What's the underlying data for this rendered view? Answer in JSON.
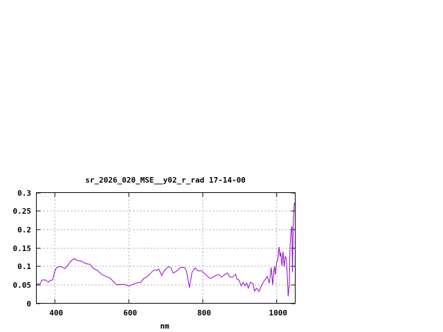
{
  "chart_data": {
    "type": "line",
    "title": "sr_2026_020_MSE__y02_r_rad 17-14-00",
    "xlabel": "nm",
    "ylabel": "",
    "xlim": [
      350,
      1050
    ],
    "ylim": [
      0,
      0.3
    ],
    "grid": true,
    "x_ticks": [
      "400",
      "600",
      "800",
      "1000"
    ],
    "x_tick_values": [
      400,
      600,
      800,
      1000
    ],
    "y_ticks": [
      "0",
      "0.05",
      "0.1",
      "0.15",
      "0.2",
      "0.25",
      "0.3"
    ],
    "y_tick_values": [
      0,
      0.05,
      0.1,
      0.15,
      0.2,
      0.25,
      0.3
    ],
    "line_color": "#9400d3",
    "series": [
      {
        "x": [
          350,
          360.6,
          365,
          375,
          382.5,
          387.5,
          394,
          399,
          404,
          414,
          420,
          427.5,
          434,
          442,
          451,
          461,
          473,
          481,
          490,
          495,
          502.5,
          514,
          526,
          539,
          548,
          557.5,
          567,
          576,
          589,
          601,
          611,
          620,
          632.5,
          639,
          648,
          655,
          664,
          670,
          676,
          681,
          689,
          695,
          707.5,
          714,
          720,
          729,
          739,
          751,
          756,
          764,
          771,
          779,
          787.5,
          798,
          802.5,
          809,
          817,
          823,
          829,
          835,
          844,
          851,
          861,
          867,
          873,
          879,
          889,
          892,
          898,
          904,
          909,
          914,
          919,
          923,
          929,
          936,
          940,
          945,
          952.5,
          959,
          967,
          974,
          980,
          985,
          989,
          991.5,
          994,
          996,
          1000,
          1002.5,
          1006,
          1009,
          1011,
          1014,
          1017,
          1020,
          1023,
          1026,
          1029,
          1031,
          1034,
          1036,
          1039,
          1041,
          1042.5,
          1045,
          1047.5,
          1050
        ],
        "y": [
          0.052,
          0.053,
          0.063,
          0.063,
          0.057,
          0.062,
          0.063,
          0.084,
          0.096,
          0.1,
          0.098,
          0.094,
          0.102,
          0.113,
          0.121,
          0.116,
          0.114,
          0.109,
          0.106,
          0.106,
          0.096,
          0.09,
          0.079,
          0.072,
          0.069,
          0.06,
          0.05,
          0.051,
          0.051,
          0.047,
          0.051,
          0.055,
          0.057,
          0.066,
          0.071,
          0.077,
          0.087,
          0.091,
          0.089,
          0.093,
          0.075,
          0.087,
          0.1,
          0.096,
          0.082,
          0.087,
          0.097,
          0.097,
          0.087,
          0.043,
          0.084,
          0.096,
          0.088,
          0.088,
          0.082,
          0.077,
          0.069,
          0.068,
          0.072,
          0.075,
          0.078,
          0.071,
          0.079,
          0.082,
          0.072,
          0.07,
          0.079,
          0.066,
          0.063,
          0.047,
          0.057,
          0.047,
          0.055,
          0.041,
          0.057,
          0.053,
          0.033,
          0.041,
          0.032,
          0.049,
          0.062,
          0.073,
          0.055,
          0.097,
          0.05,
          0.084,
          0.1,
          0.077,
          0.113,
          0.115,
          0.153,
          0.127,
          0.137,
          0.102,
          0.14,
          0.099,
          0.127,
          0.121,
          0.068,
          0.019,
          0.052,
          0.156,
          0.2,
          0.209,
          0.084,
          0.225,
          0.271,
          0.266
        ]
      }
    ]
  }
}
